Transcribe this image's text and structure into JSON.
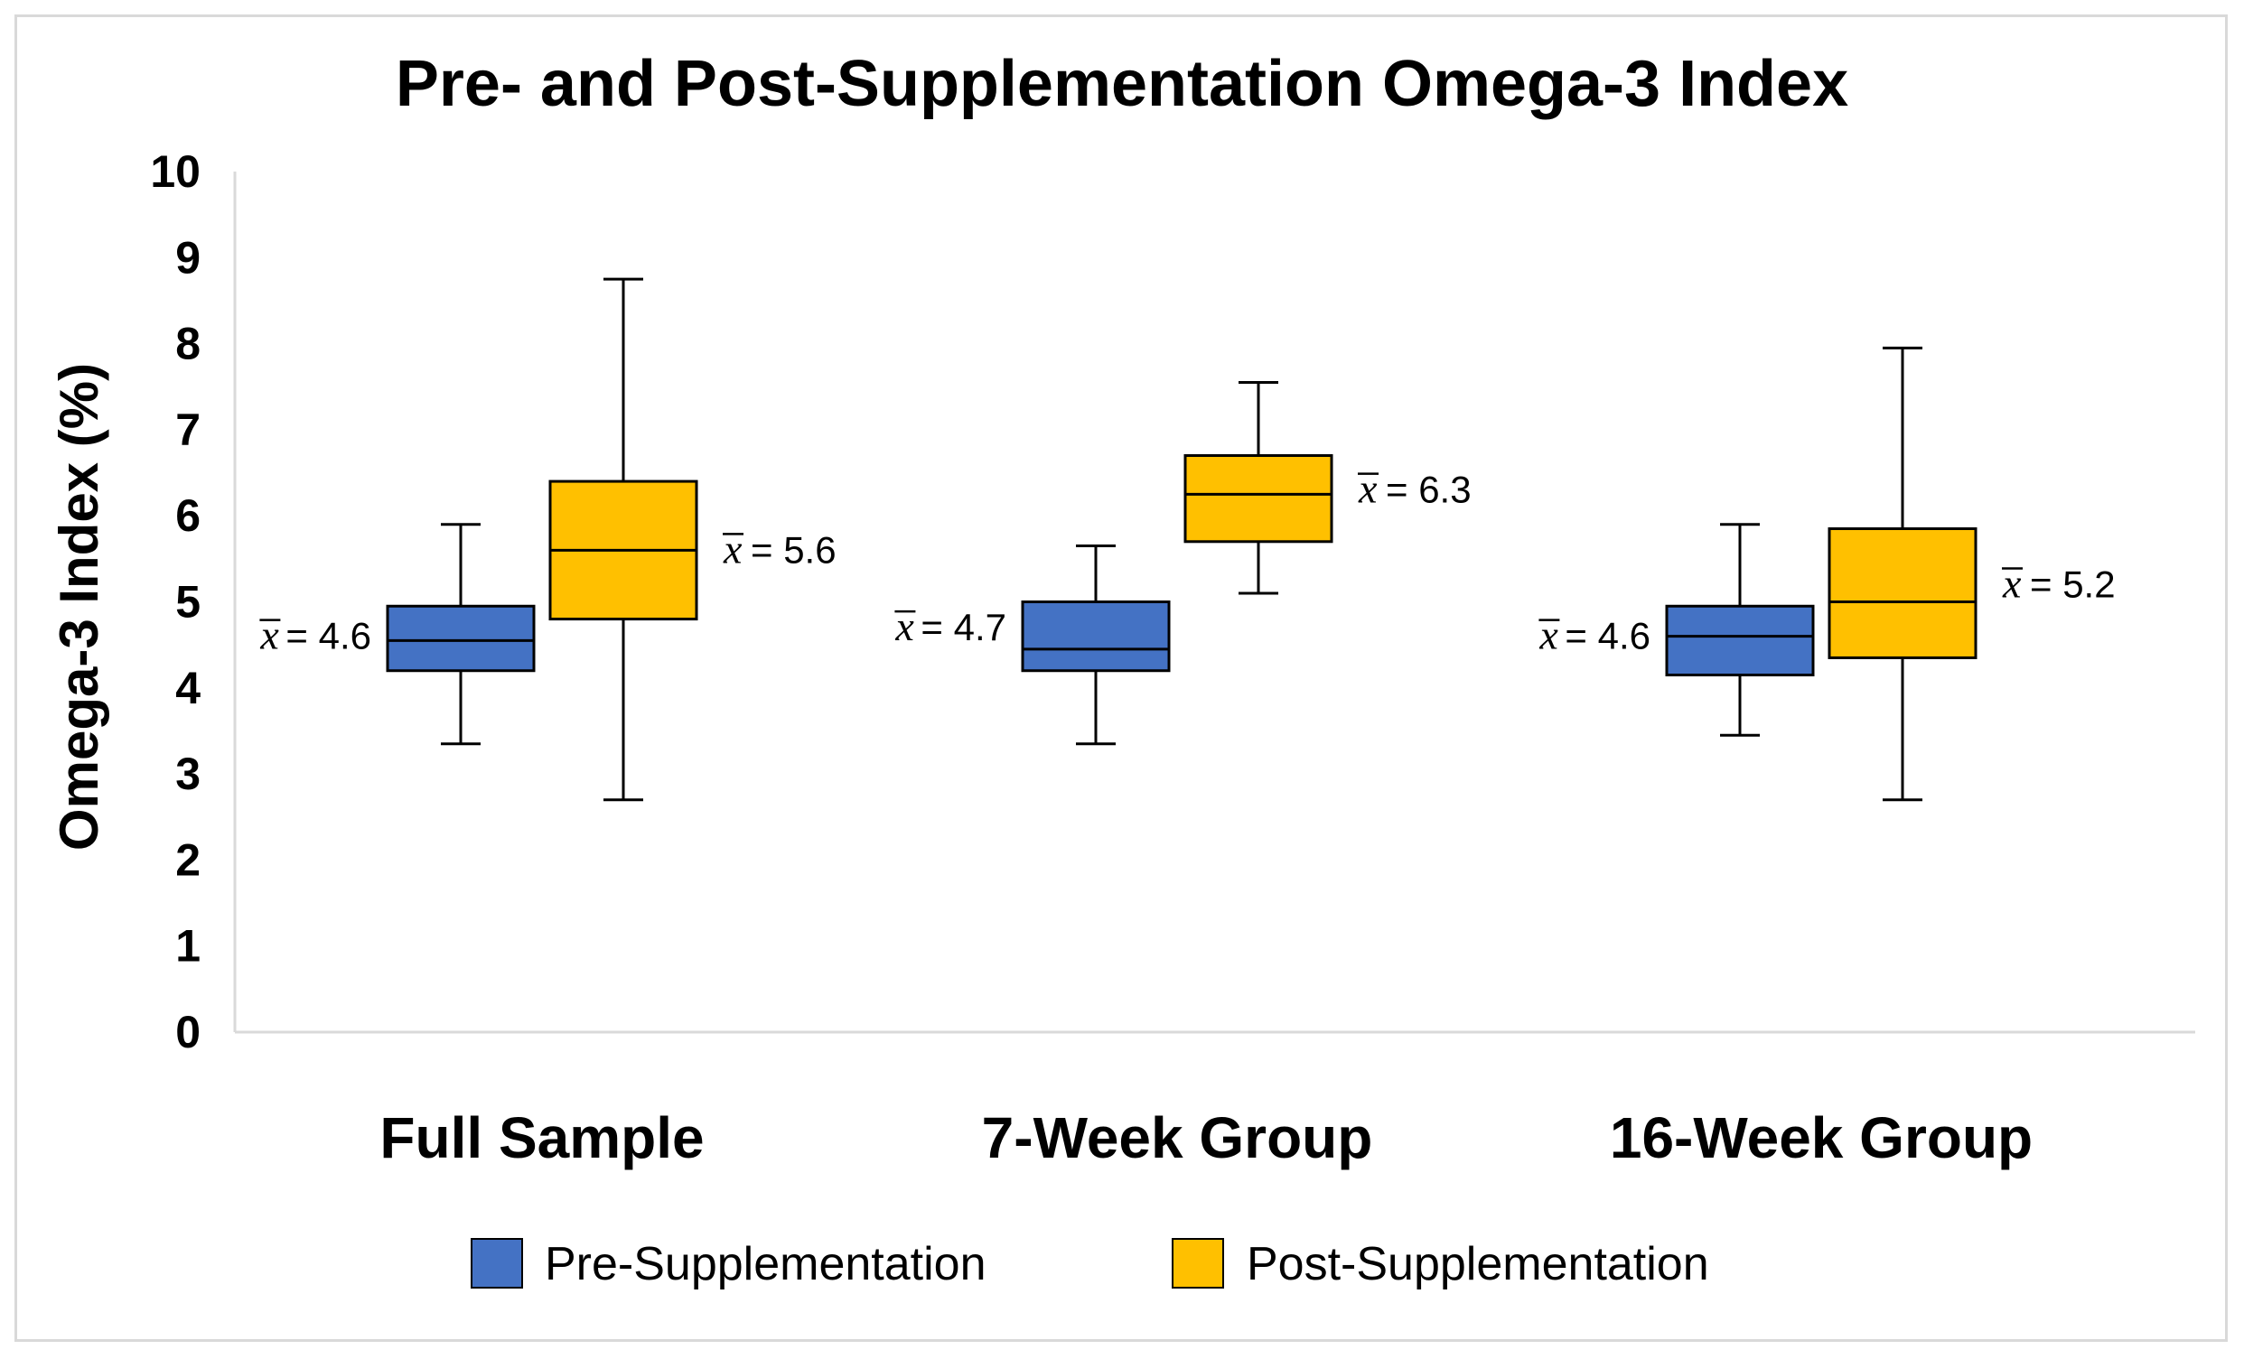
{
  "chart_data": {
    "type": "boxplot",
    "title": "Pre- and Post-Supplementation Omega-3 Index",
    "xlabel": "",
    "ylabel": "Omega-3 Index (%)",
    "ylim": [
      0,
      10
    ],
    "yticks": [
      "0",
      "1",
      "2",
      "3",
      "4",
      "5",
      "6",
      "7",
      "8",
      "9",
      "10"
    ],
    "grid": false,
    "legend_position": "bottom",
    "categories": [
      "Full Sample",
      "7-Week Group",
      "16-Week Group"
    ],
    "mean_symbol": "x",
    "series": [
      {
        "name": "Pre-Supplementation",
        "color": "#4472C4",
        "boxes": [
          {
            "whisker_low": 3.35,
            "q1": 4.2,
            "median": 4.55,
            "q3": 4.95,
            "whisker_high": 5.9,
            "mean": 4.6,
            "mean_label": "= 4.6"
          },
          {
            "whisker_low": 3.35,
            "q1": 4.2,
            "median": 4.45,
            "q3": 5.0,
            "whisker_high": 5.65,
            "mean": 4.7,
            "mean_label": "= 4.7"
          },
          {
            "whisker_low": 3.45,
            "q1": 4.15,
            "median": 4.6,
            "q3": 4.95,
            "whisker_high": 5.9,
            "mean": 4.6,
            "mean_label": "= 4.6"
          }
        ]
      },
      {
        "name": "Post-Supplementation",
        "color": "#FFC000",
        "boxes": [
          {
            "whisker_low": 2.7,
            "q1": 4.8,
            "median": 5.6,
            "q3": 6.4,
            "whisker_high": 8.75,
            "mean": 5.6,
            "mean_label": "= 5.6"
          },
          {
            "whisker_low": 5.1,
            "q1": 5.7,
            "median": 6.25,
            "q3": 6.7,
            "whisker_high": 7.55,
            "mean": 6.3,
            "mean_label": "= 6.3"
          },
          {
            "whisker_low": 2.7,
            "q1": 4.35,
            "median": 5.0,
            "q3": 5.85,
            "whisker_high": 7.95,
            "mean": 5.2,
            "mean_label": "= 5.2"
          }
        ]
      }
    ]
  }
}
